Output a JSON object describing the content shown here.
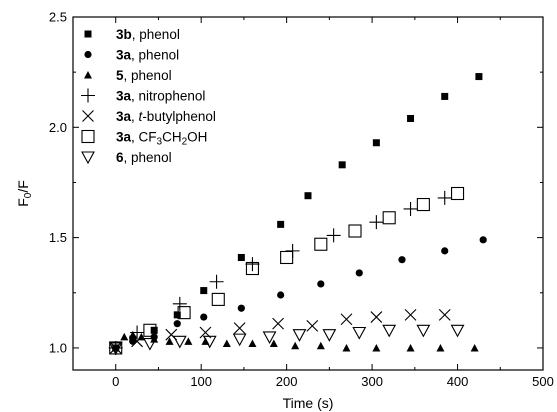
{
  "chart_data": {
    "type": "scatter",
    "xlabel": "Time (s)",
    "ylabel_main": "F",
    "ylabel_sub": "0",
    "ylabel_rest": "/F",
    "xlim": [
      -50,
      500
    ],
    "ylim": [
      0.9,
      2.5
    ],
    "xticks": [
      0,
      100,
      200,
      300,
      400,
      500
    ],
    "xtick_labels": [
      "0",
      "100",
      "200",
      "300",
      "400",
      "500"
    ],
    "yticks": [
      1.0,
      1.5,
      2.0,
      2.5
    ],
    "ytick_labels": [
      "1.0",
      "1.5",
      "2.0",
      "2.5"
    ],
    "grid": false,
    "legend_position": "top-left",
    "series": [
      {
        "bold": "3b",
        "sep": ", ",
        "rest": "phenol",
        "marker": "filled-square",
        "x": [
          0,
          20,
          45,
          72,
          103,
          147,
          193,
          225,
          265,
          305,
          345,
          385,
          425
        ],
        "y": [
          1.0,
          1.04,
          1.08,
          1.15,
          1.26,
          1.41,
          1.56,
          1.69,
          1.83,
          1.93,
          2.04,
          2.14,
          2.23
        ]
      },
      {
        "bold": "3a",
        "sep": ", ",
        "rest": "phenol",
        "marker": "filled-circle",
        "x": [
          0,
          20,
          45,
          72,
          103,
          147,
          193,
          240,
          285,
          335,
          385,
          430
        ],
        "y": [
          1.0,
          1.03,
          1.05,
          1.11,
          1.14,
          1.18,
          1.24,
          1.29,
          1.34,
          1.4,
          1.44,
          1.49
        ]
      },
      {
        "bold": "5",
        "sep": ", ",
        "rest": "phenol",
        "marker": "filled-triangle",
        "x": [
          0,
          10,
          20,
          30,
          45,
          63,
          85,
          105,
          130,
          160,
          185,
          210,
          240,
          270,
          305,
          345,
          380,
          420
        ],
        "y": [
          1.0,
          1.05,
          1.06,
          1.05,
          1.04,
          1.03,
          1.03,
          1.03,
          1.02,
          1.02,
          1.02,
          1.01,
          1.01,
          1.0,
          1.0,
          1.0,
          1.0,
          1.0
        ]
      },
      {
        "bold": "3a",
        "sep": ", ",
        "rest": "nitrophenol",
        "marker": "plus",
        "x": [
          0,
          25,
          75,
          118,
          160,
          207,
          255,
          305,
          345,
          385
        ],
        "y": [
          1.0,
          1.07,
          1.2,
          1.3,
          1.38,
          1.44,
          1.51,
          1.57,
          1.63,
          1.68
        ]
      },
      {
        "bold": "3a",
        "sep": ", ",
        "rest_italic": "t",
        "rest": "-butylphenol",
        "marker": "cross",
        "x": [
          0,
          25,
          65,
          105,
          145,
          190,
          230,
          270,
          305,
          345,
          385
        ],
        "y": [
          1.0,
          1.03,
          1.06,
          1.07,
          1.09,
          1.11,
          1.1,
          1.13,
          1.14,
          1.15,
          1.15
        ]
      },
      {
        "bold": "3a",
        "sep": ", ",
        "formula": [
          "CF",
          "3",
          "CH",
          "2",
          "OH"
        ],
        "marker": "open-square",
        "x": [
          0,
          40,
          80,
          120,
          160,
          200,
          240,
          280,
          320,
          360,
          400
        ],
        "y": [
          1.0,
          1.08,
          1.16,
          1.22,
          1.36,
          1.41,
          1.47,
          1.53,
          1.59,
          1.65,
          1.7
        ]
      },
      {
        "bold": "6",
        "sep": ", ",
        "rest": "phenol",
        "marker": "open-triangle-down",
        "x": [
          0,
          40,
          75,
          110,
          145,
          180,
          215,
          250,
          285,
          320,
          360,
          400
        ],
        "y": [
          1.0,
          1.02,
          1.03,
          1.03,
          1.04,
          1.05,
          1.06,
          1.06,
          1.07,
          1.08,
          1.08,
          1.08
        ]
      }
    ]
  }
}
